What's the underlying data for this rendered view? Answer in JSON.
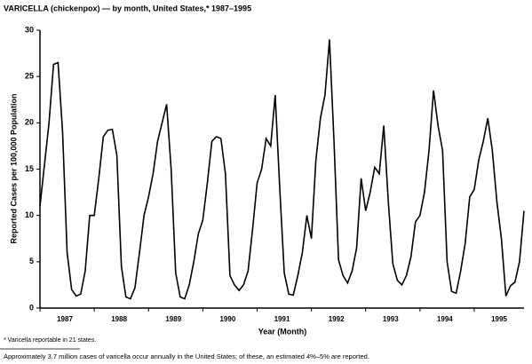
{
  "chart_data": {
    "type": "line",
    "title": "VARICELLA (chickenpox) — by month, United States,* 1987–1995",
    "y_label": "Reported Cases per 100,000 Population",
    "x_label": "Year (Month)",
    "footnote": "* Varicella reportable in 21 states.",
    "note": "Approximately 3.7 million cases of varicella occur annually in the United States; of these, an estimated 4%–5% are reported.",
    "year_labels": [
      "1987",
      "1988",
      "1989",
      "1990",
      "1991",
      "1992",
      "1993",
      "1994",
      "1995"
    ],
    "color": "#000000",
    "values": [
      11,
      15.5,
      20,
      26.3,
      26.5,
      19,
      6,
      2,
      1.3,
      1.5,
      4,
      10,
      10,
      14,
      18.5,
      19.2,
      19.3,
      16.5,
      4.5,
      1.2,
      1,
      2.2,
      6,
      10,
      12,
      14.5,
      18,
      20,
      22,
      15,
      3.8,
      1.2,
      1,
      2.5,
      5,
      8,
      9.5,
      13.5,
      18,
      18.5,
      18.3,
      14.5,
      3.5,
      2.5,
      1.9,
      2.5,
      4,
      8.5,
      13.5,
      15,
      18.3,
      17.5,
      23,
      13,
      3.8,
      1.5,
      1.4,
      3.5,
      6,
      10,
      7.5,
      16,
      20.5,
      23,
      29,
      18,
      5.2,
      3.5,
      2.7,
      4,
      6.5,
      14,
      10.5,
      12.5,
      15.2,
      14.5,
      19.7,
      11.5,
      4.8,
      3,
      2.5,
      3.5,
      5.5,
      9.3,
      10,
      12.5,
      17,
      23.5,
      19.7,
      17,
      5,
      1.8,
      1.6,
      4,
      7,
      12,
      12.8,
      16,
      18,
      20.5,
      17,
      11.5,
      7.5,
      1.3,
      2.4,
      2.8,
      5,
      10.5
    ],
    "ylim": [
      0,
      30
    ],
    "yticks": [
      0,
      5,
      10,
      15,
      20,
      25,
      30
    ]
  }
}
